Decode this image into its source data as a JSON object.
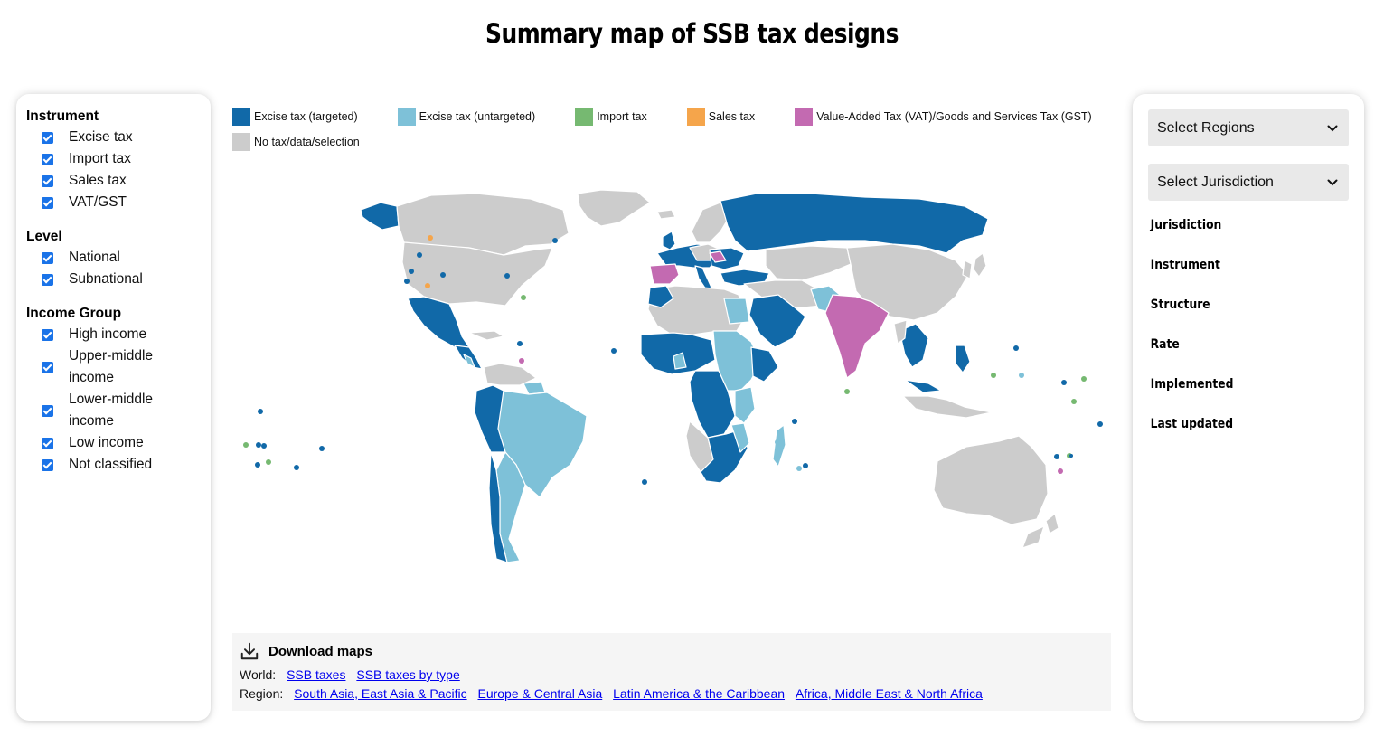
{
  "title": "Summary map of SSB tax designs",
  "filters": [
    {
      "title": "Instrument",
      "options": [
        "Excise tax",
        "Import tax",
        "Sales tax",
        "VAT/GST"
      ]
    },
    {
      "title": "Level",
      "options": [
        "National",
        "Subnational"
      ]
    },
    {
      "title": "Income Group",
      "options": [
        "High income",
        "Upper-middle income",
        "Lower-middle income",
        "Low income",
        "Not classified"
      ]
    }
  ],
  "legend": [
    {
      "label": "Excise tax (targeted)",
      "color": "#1169a8"
    },
    {
      "label": "Excise tax (untargeted)",
      "color": "#7ec1d8"
    },
    {
      "label": "Import tax",
      "color": "#76b971"
    },
    {
      "label": "Sales tax",
      "color": "#f5a54b"
    },
    {
      "label": "Value-Added Tax (VAT)/Goods and Services Tax (GST)",
      "color": "#c36ab1"
    },
    {
      "label": "No tax/data/selection",
      "color": "#cccccc"
    }
  ],
  "right_panel": {
    "select_regions": "Select Regions",
    "select_jurisdiction": "Select Jurisdiction",
    "fields": [
      "Jurisdiction",
      "Instrument",
      "Structure",
      "Rate",
      "Implemented",
      "Last updated"
    ]
  },
  "download": {
    "title": "Download maps",
    "world_label": "World:",
    "world_links": [
      "SSB taxes",
      "SSB taxes by type"
    ],
    "region_label": "Region:",
    "region_links": [
      "South Asia, East Asia & Pacific",
      "Europe & Central Asia",
      "Latin America & the Caribbean",
      "Africa, Middle East & North Africa"
    ]
  }
}
